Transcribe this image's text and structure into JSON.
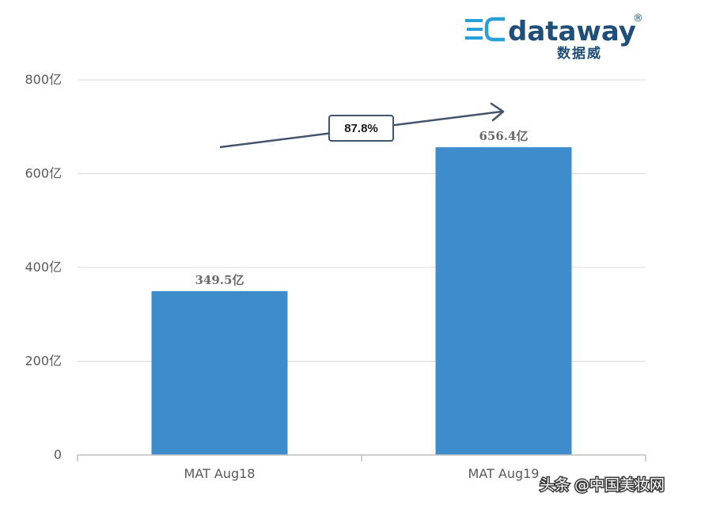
{
  "chart_data": {
    "type": "bar",
    "title": "",
    "xlabel": "",
    "ylabel": "",
    "categories": [
      "MAT Aug18",
      "MAT Aug19"
    ],
    "values": [
      349.5,
      656.4
    ],
    "data_labels": [
      "349.5亿",
      "656.4亿"
    ],
    "ylim": [
      0,
      800
    ],
    "y_ticks": [
      0,
      200,
      400,
      600,
      800
    ],
    "y_tick_labels": [
      "0",
      "200亿",
      "400亿",
      "600亿",
      "800亿"
    ],
    "grid": true,
    "legend": "none",
    "bar_color": "#3e8ccb",
    "growth_annotation": "87.8%"
  },
  "logo": {
    "ec_text": "EC",
    "name": "dataway",
    "registered": "®",
    "subtitle": "数据威",
    "accent_color": "#2aa0d8",
    "text_color": "#1f4e79"
  },
  "watermark": {
    "text": "头条 @中国美妆网"
  }
}
